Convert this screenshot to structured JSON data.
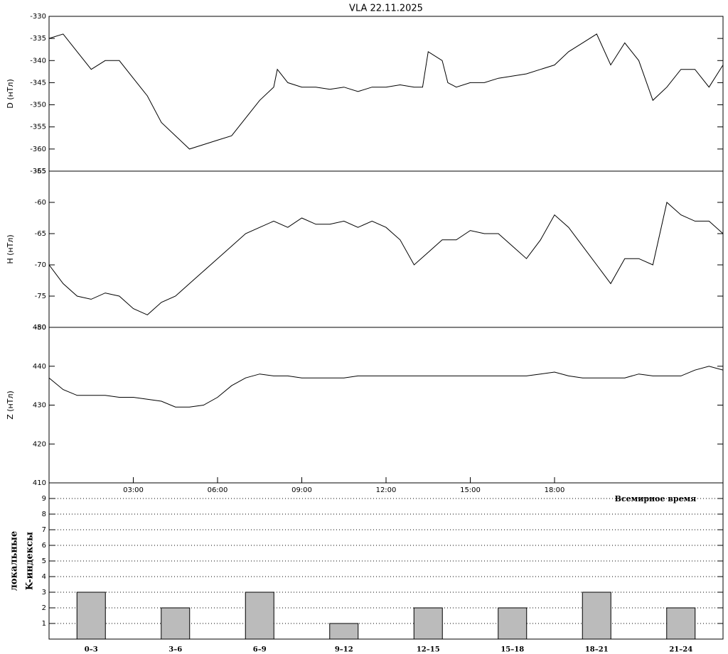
{
  "chart_data": [
    {
      "type": "line",
      "title": "VLA   22.11.2025",
      "ylabel": "D (нТл)",
      "xlim": [
        0,
        24
      ],
      "ylim": [
        -365,
        -330
      ],
      "yticks": [
        -365,
        -360,
        -355,
        -350,
        -345,
        -340,
        -335,
        -330
      ],
      "series": [
        {
          "color": "#000000",
          "x": [
            0,
            0.5,
            1,
            1.5,
            2,
            2.5,
            3,
            3.5,
            4,
            4.5,
            5,
            5.5,
            6,
            6.5,
            7,
            7.5,
            8,
            8.13,
            8.5,
            9,
            9.5,
            10,
            10.5,
            11,
            11.5,
            12,
            12.5,
            13,
            13.3,
            13.5,
            14,
            14.2,
            14.5,
            15,
            15.5,
            16,
            16.5,
            17,
            17.5,
            18,
            18.5,
            19,
            19.5,
            20,
            20.5,
            21,
            21.5,
            22,
            22.5,
            23,
            23.5,
            24
          ],
          "values": [
            -335,
            -334,
            -338,
            -342,
            -340,
            -340,
            -344,
            -348,
            -354,
            -357,
            -360,
            -359,
            -358,
            -357,
            -353,
            -349,
            -346,
            -342,
            -345,
            -346,
            -346,
            -346.5,
            -346,
            -347,
            -346,
            -346,
            -345.5,
            -346,
            -346,
            -338,
            -340,
            -345,
            -346,
            -345,
            -345,
            -344,
            -343.5,
            -343,
            -342,
            -341,
            -338,
            -336,
            -334,
            -341,
            -336,
            -340,
            -349,
            -346,
            -342,
            -342,
            -346,
            -341
          ]
        }
      ]
    },
    {
      "type": "line",
      "ylabel": "H (нТл)",
      "xlim": [
        0,
        24
      ],
      "ylim": [
        -80,
        -55
      ],
      "yticks": [
        -80,
        -75,
        -70,
        -65,
        -60,
        -55
      ],
      "series": [
        {
          "color": "#000000",
          "x": [
            0,
            0.5,
            1,
            1.5,
            2,
            2.5,
            3,
            3.5,
            4,
            4.5,
            5,
            5.5,
            6,
            6.5,
            7,
            7.5,
            8,
            8.5,
            9,
            9.5,
            10,
            10.5,
            11,
            11.5,
            12,
            12.5,
            13,
            13.5,
            14,
            14.5,
            15,
            15.5,
            16,
            16.5,
            17,
            17.5,
            18,
            18.5,
            19,
            19.5,
            20,
            20.5,
            21,
            21.5,
            22,
            22.5,
            23,
            23.5,
            24
          ],
          "values": [
            -70,
            -73,
            -75,
            -75.5,
            -74.5,
            -75,
            -77,
            -78,
            -76,
            -75,
            -73,
            -71,
            -69,
            -67,
            -65,
            -64,
            -63,
            -64,
            -62.5,
            -63.5,
            -63.5,
            -63,
            -64,
            -63,
            -64,
            -66,
            -70,
            -68,
            -66,
            -66,
            -64.5,
            -65,
            -65,
            -67,
            -69,
            -66,
            -62,
            -64,
            -67,
            -70,
            -73,
            -69,
            -69,
            -70,
            -60,
            -62,
            -63,
            -63,
            -65
          ]
        }
      ]
    },
    {
      "type": "line",
      "ylabel": "Z (нТл)",
      "xlim": [
        0,
        24
      ],
      "xlabel": "Всемирное время",
      "xticks": [
        {
          "value": 3,
          "label": "03:00"
        },
        {
          "value": 6,
          "label": "06:00"
        },
        {
          "value": 9,
          "label": "09:00"
        },
        {
          "value": 12,
          "label": "12:00"
        },
        {
          "value": 15,
          "label": "15:00"
        },
        {
          "value": 18,
          "label": "18:00"
        }
      ],
      "ylim": [
        410,
        450
      ],
      "yticks": [
        410,
        420,
        430,
        440,
        450
      ],
      "series": [
        {
          "color": "#000000",
          "x": [
            0,
            0.5,
            1,
            1.5,
            2,
            2.5,
            3,
            3.5,
            4,
            4.5,
            5,
            5.5,
            6,
            6.5,
            7,
            7.5,
            8,
            8.5,
            9,
            9.5,
            10,
            10.5,
            11,
            11.5,
            12,
            12.5,
            13,
            13.5,
            14,
            14.5,
            15,
            15.5,
            16,
            16.5,
            17,
            17.5,
            18,
            18.5,
            19,
            19.5,
            20,
            20.5,
            21,
            21.5,
            22,
            22.5,
            23,
            23.5,
            24
          ],
          "values": [
            437,
            434,
            432.5,
            432.5,
            432.5,
            432,
            432,
            431.5,
            431,
            429.5,
            429.5,
            430,
            432,
            435,
            437,
            438,
            437.5,
            437.5,
            437,
            437,
            437,
            437,
            437.5,
            437.5,
            437.5,
            437.5,
            437.5,
            437.5,
            437.5,
            437.5,
            437.5,
            437.5,
            437.5,
            437.5,
            437.5,
            438,
            438.5,
            437.5,
            437,
            437,
            437,
            437,
            438,
            437.5,
            437.5,
            437.5,
            439,
            440,
            439
          ]
        }
      ]
    },
    {
      "type": "bar",
      "ylabel": [
        "локальные",
        "K-индексы"
      ],
      "color": "#bbbbbb",
      "grid": true,
      "categories": [
        "0–3",
        "3–6",
        "6–9",
        "9–12",
        "12–15",
        "15–18",
        "18–21",
        "21–24"
      ],
      "values": [
        3,
        2,
        3,
        1,
        2,
        2,
        3,
        2
      ],
      "ylim": [
        0,
        10
      ],
      "yticks": [
        1,
        2,
        3,
        4,
        5,
        6,
        7,
        8,
        9
      ]
    }
  ]
}
